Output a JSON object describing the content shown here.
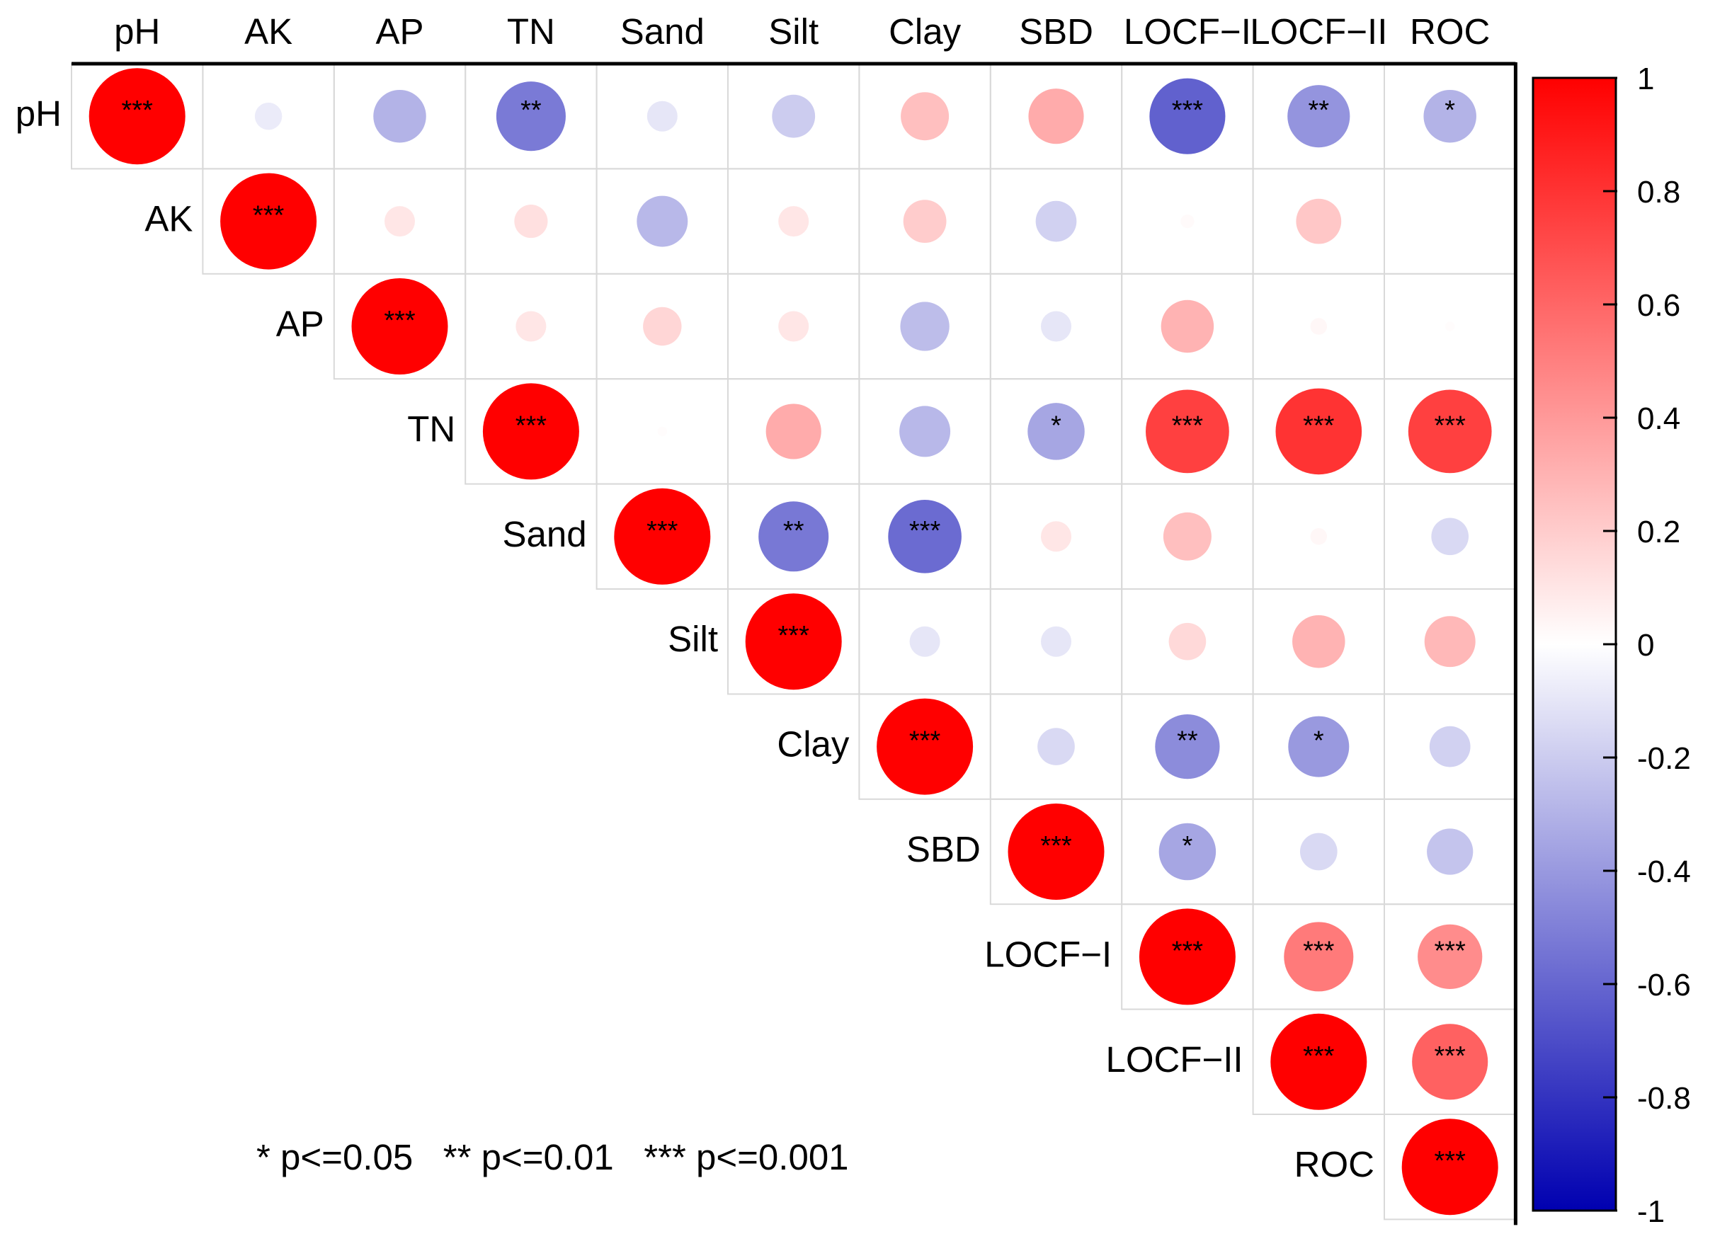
{
  "chart_data": {
    "type": "correlation-matrix",
    "layout": "upper-triangle circles",
    "variables": [
      "pH",
      "AK",
      "AP",
      "TN",
      "Sand",
      "Silt",
      "Clay",
      "SBD",
      "LOCF−I",
      "LOCF−II",
      "ROC"
    ],
    "matrix": [
      [
        1.0,
        -0.08,
        -0.3,
        -0.52,
        -0.1,
        -0.2,
        0.25,
        0.33,
        -0.62,
        -0.42,
        -0.3
      ],
      [
        null,
        1.0,
        0.1,
        0.12,
        -0.28,
        0.1,
        0.2,
        -0.18,
        0.02,
        0.22,
        0.0
      ],
      [
        null,
        null,
        1.0,
        0.1,
        0.16,
        0.1,
        -0.26,
        -0.1,
        0.3,
        0.03,
        0.01
      ],
      [
        null,
        null,
        null,
        1.0,
        0.01,
        0.33,
        -0.28,
        -0.35,
        0.75,
        0.8,
        0.75
      ],
      [
        null,
        null,
        null,
        null,
        1.0,
        -0.53,
        -0.58,
        0.1,
        0.25,
        0.03,
        -0.15
      ],
      [
        null,
        null,
        null,
        null,
        null,
        1.0,
        -0.1,
        -0.1,
        0.15,
        0.3,
        0.28
      ],
      [
        null,
        null,
        null,
        null,
        null,
        null,
        1.0,
        -0.15,
        -0.45,
        -0.4,
        -0.18
      ],
      [
        null,
        null,
        null,
        null,
        null,
        null,
        null,
        1.0,
        -0.35,
        -0.15,
        -0.23
      ],
      [
        null,
        null,
        null,
        null,
        null,
        null,
        null,
        null,
        1.0,
        0.52,
        0.45
      ],
      [
        null,
        null,
        null,
        null,
        null,
        null,
        null,
        null,
        null,
        1.0,
        0.62
      ],
      [
        null,
        null,
        null,
        null,
        null,
        null,
        null,
        null,
        null,
        null,
        1.0
      ]
    ],
    "significance": [
      [
        "***",
        "",
        "",
        "**",
        "",
        "",
        "",
        "",
        "***",
        "**",
        "*"
      ],
      [
        "",
        "***",
        "",
        "",
        "",
        "",
        "",
        "",
        "",
        "",
        ""
      ],
      [
        "",
        "",
        "***",
        "",
        "",
        "",
        "",
        "",
        "",
        "",
        ""
      ],
      [
        "",
        "",
        "",
        "***",
        "",
        "",
        "",
        "*",
        "***",
        "***",
        "***"
      ],
      [
        "",
        "",
        "",
        "",
        "***",
        "**",
        "***",
        "",
        "",
        "",
        ""
      ],
      [
        "",
        "",
        "",
        "",
        "",
        "***",
        "",
        "",
        "",
        "",
        ""
      ],
      [
        "",
        "",
        "",
        "",
        "",
        "",
        "***",
        "",
        "**",
        "*",
        ""
      ],
      [
        "",
        "",
        "",
        "",
        "",
        "",
        "",
        "***",
        "*",
        "",
        ""
      ],
      [
        "",
        "",
        "",
        "",
        "",
        "",
        "",
        "",
        "***",
        "***",
        "***"
      ],
      [
        "",
        "",
        "",
        "",
        "",
        "",
        "",
        "",
        "",
        "***",
        "***"
      ],
      [
        "",
        "",
        "",
        "",
        "",
        "",
        "",
        "",
        "",
        "",
        "***"
      ]
    ],
    "colorbar": {
      "min": -1,
      "max": 1,
      "ticks": [
        "1",
        "0.8",
        "0.6",
        "0.4",
        "0.2",
        "0",
        "-0.2",
        "-0.4",
        "-0.6",
        "-0.8",
        "-1"
      ],
      "low_color": "#0000b0",
      "mid_color": "#ffffff",
      "high_color": "#ff0000"
    },
    "legend_note": "* p<=0.05   ** p<=0.01   *** p<=0.001"
  }
}
